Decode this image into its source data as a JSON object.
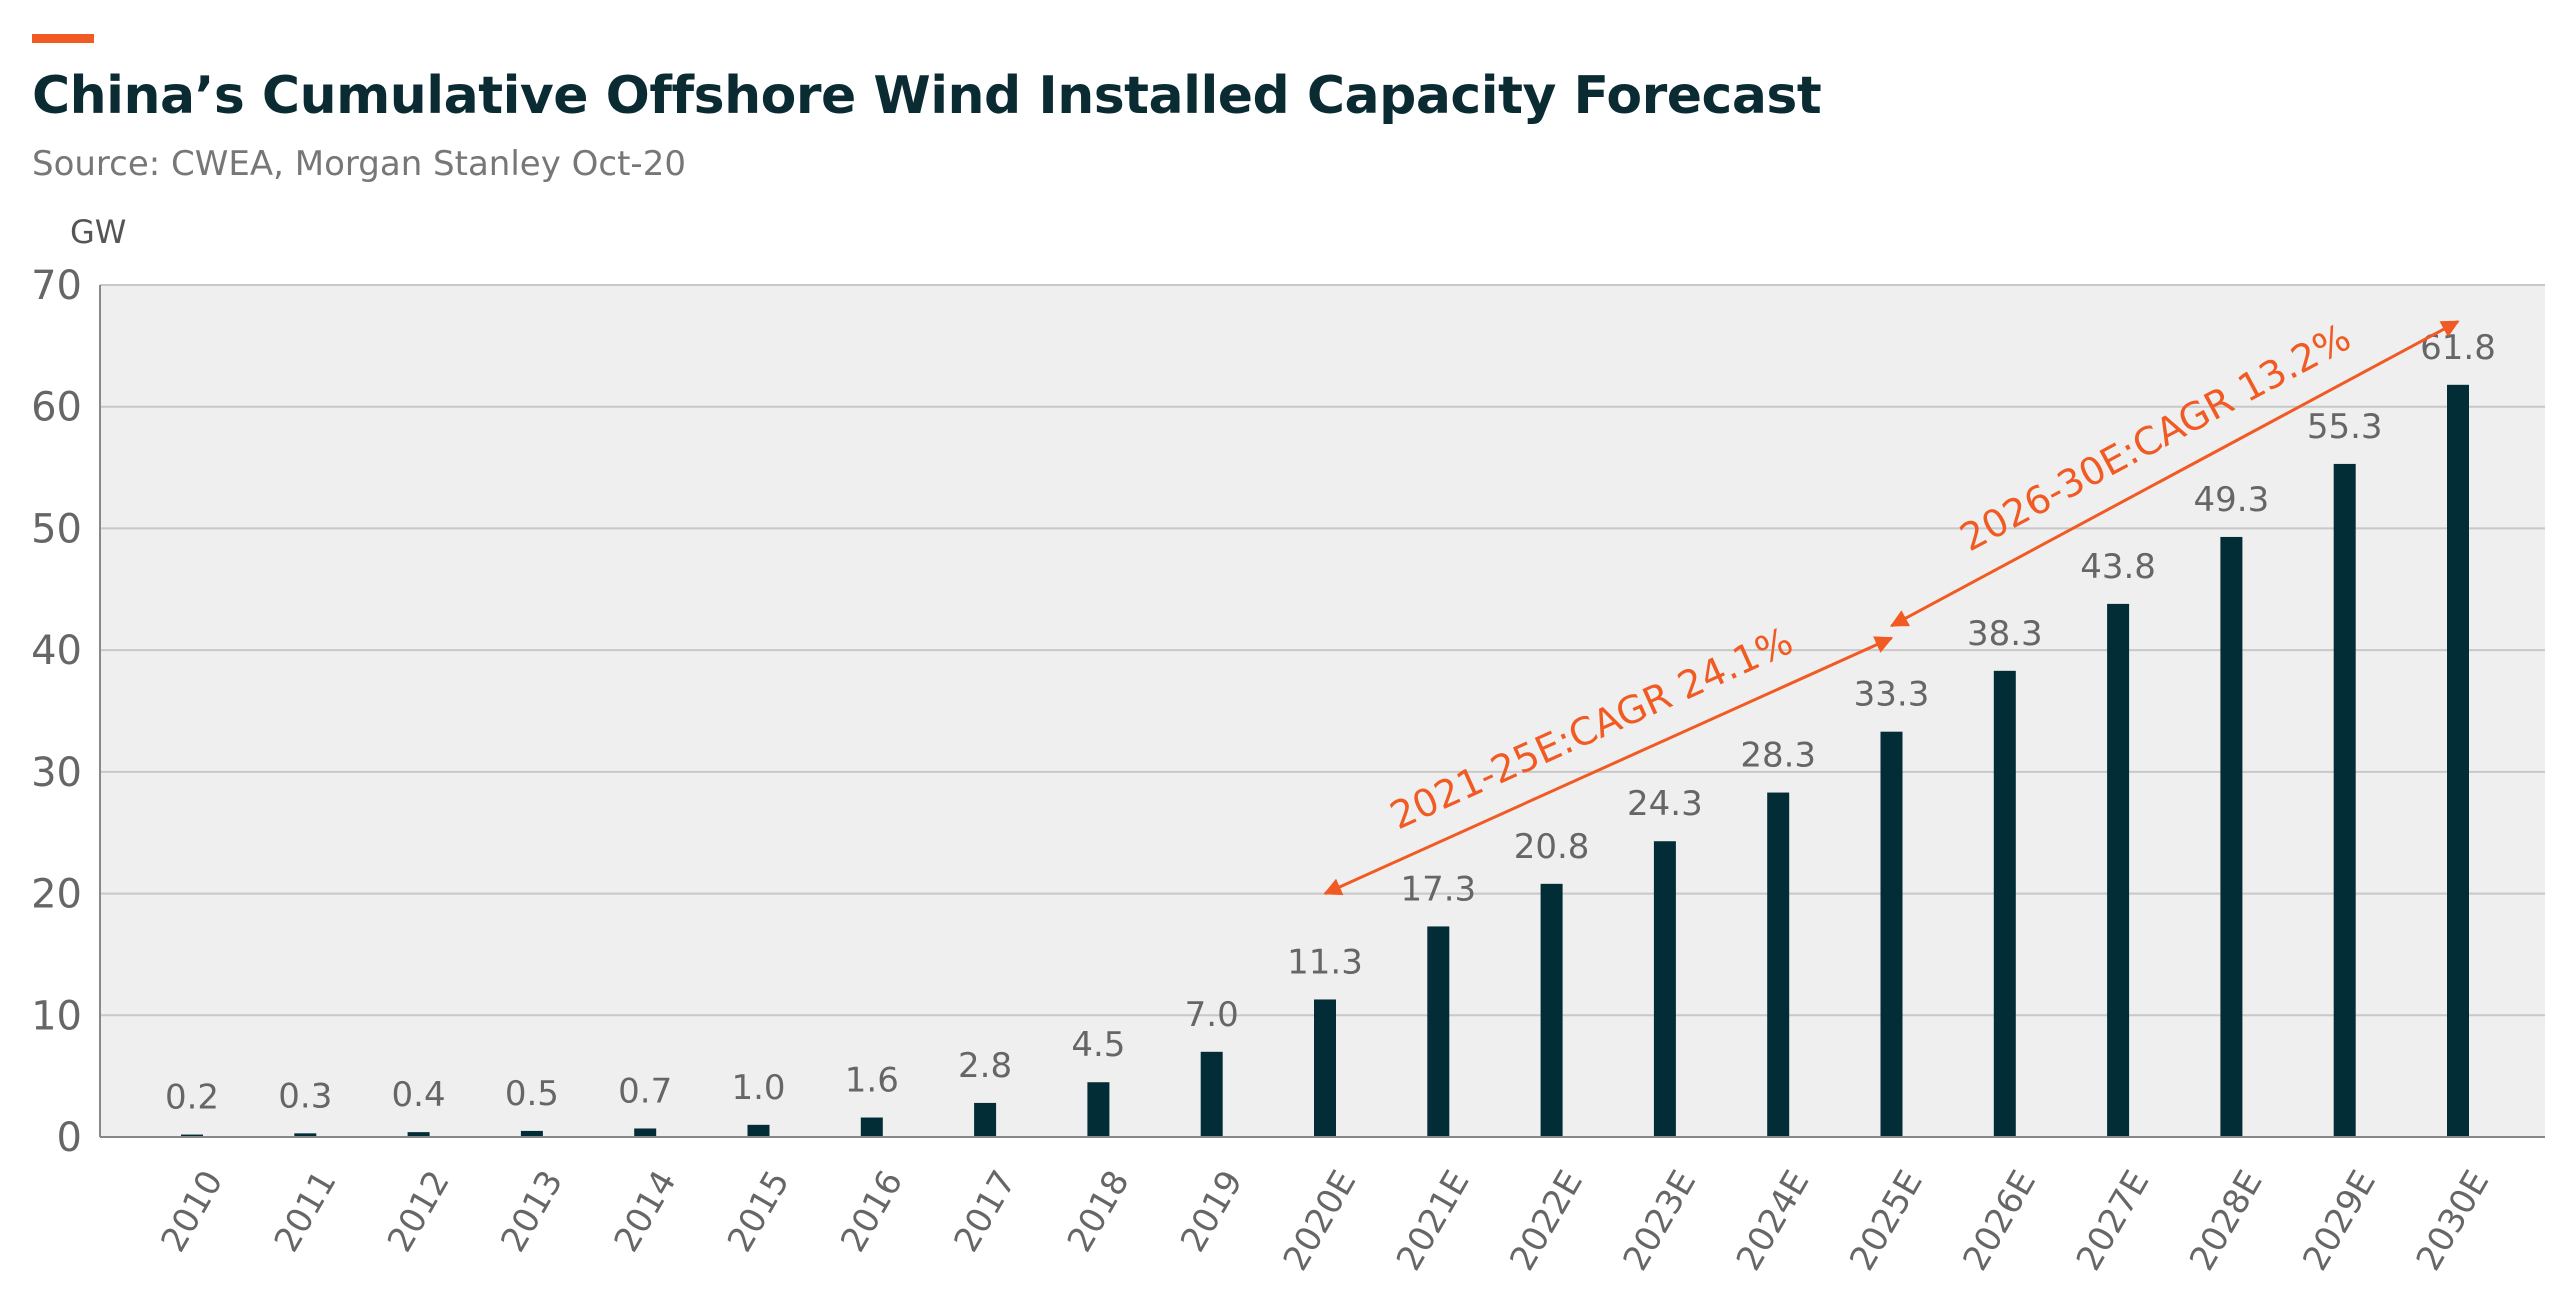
{
  "title": "China’s Cumulative Offshore Wind Installed Capacity Forecast",
  "subtitle": "Source: CWEA, Morgan Stanley Oct-20",
  "colors": {
    "accent": "#f15a22",
    "bar": "#032d36",
    "plot_bg": "#efefef",
    "grid": "#c8c8c8",
    "text": "#666666",
    "title": "#0b2b33"
  },
  "chart_data": {
    "type": "bar",
    "title": "China’s Cumulative Offshore Wind Installed Capacity Forecast",
    "ylabel": "GW",
    "xlabel": "",
    "ylim": [
      0,
      70
    ],
    "yticks": [
      0,
      10,
      20,
      30,
      40,
      50,
      60,
      70
    ],
    "grid": true,
    "categories": [
      "2010",
      "2011",
      "2012",
      "2013",
      "2014",
      "2015",
      "2016",
      "2017",
      "2018",
      "2019",
      "2020E",
      "2021E",
      "2022E",
      "2023E",
      "2024E",
      "2025E",
      "2026E",
      "2027E",
      "2028E",
      "2029E",
      "2030E"
    ],
    "values": [
      0.2,
      0.3,
      0.4,
      0.5,
      0.7,
      1.0,
      1.6,
      2.8,
      4.5,
      7.0,
      11.3,
      17.3,
      20.8,
      24.3,
      28.3,
      33.3,
      38.3,
      43.8,
      49.3,
      55.3,
      61.8
    ],
    "data_labels": [
      "0.2",
      "0.3",
      "0.4",
      "0.5",
      "0.7",
      "1.0",
      "1.6",
      "2.8",
      "4.5",
      "7.0",
      "11.3",
      "17.3",
      "20.8",
      "24.3",
      "28.3",
      "33.3",
      "38.3",
      "43.8",
      "49.3",
      "55.3",
      "61.8"
    ],
    "annotations": [
      {
        "text": "2021-25E:CAGR 24.1%",
        "from_category": "2020E",
        "from_value": 20,
        "to_category": "2025E",
        "to_value": 41
      },
      {
        "text": "2026-30E:CAGR 13.2%",
        "from_category": "2025E",
        "from_value": 42,
        "to_category": "2030E",
        "to_value": 67
      }
    ]
  }
}
